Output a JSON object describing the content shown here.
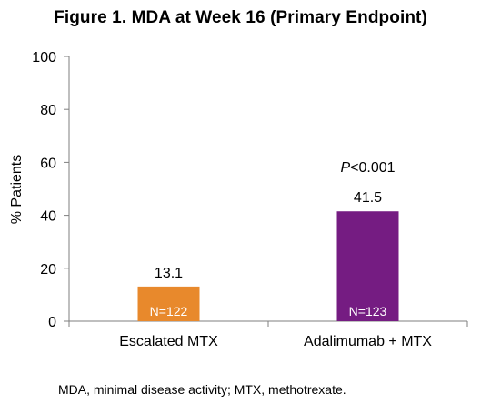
{
  "chart_data": {
    "type": "bar",
    "title": "Figure 1. MDA at Week 16 (Primary Endpoint)",
    "xlabel": "",
    "ylabel": "% Patients",
    "ylim": [
      0,
      100
    ],
    "yticks": [
      0,
      20,
      40,
      60,
      80,
      100
    ],
    "grid": false,
    "categories": [
      "Escalated MTX",
      "Adalimumab + MTX"
    ],
    "values": [
      13.1,
      41.5
    ],
    "value_labels": [
      "13.1",
      "41.5"
    ],
    "n_labels": [
      "N=122",
      "N=123"
    ],
    "colors": [
      "#E8892C",
      "#751C82"
    ],
    "annotations": [
      {
        "category": "Adalimumab + MTX",
        "prefix": "P",
        "text": "<0.001"
      }
    ]
  },
  "footnote": "MDA, minimal disease activity; MTX, methotrexate."
}
